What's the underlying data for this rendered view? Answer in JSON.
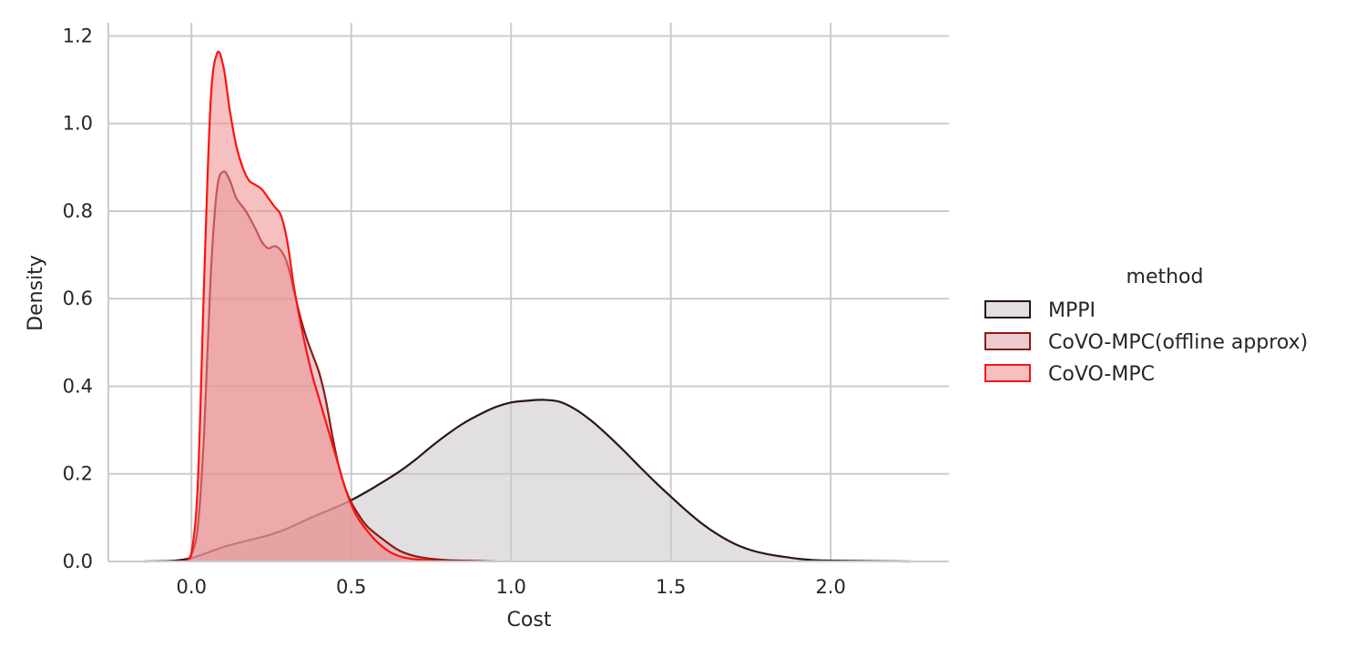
{
  "chart_data": {
    "type": "area",
    "xlabel": "Cost",
    "ylabel": "Density",
    "xlim": [
      -0.26,
      2.37
    ],
    "ylim": [
      0,
      1.23
    ],
    "xticks": [
      0.0,
      0.5,
      1.0,
      1.5,
      2.0
    ],
    "xtick_labels": [
      "0.0",
      "0.5",
      "1.0",
      "1.5",
      "2.0"
    ],
    "yticks": [
      0.0,
      0.2,
      0.4,
      0.6,
      0.8,
      1.0,
      1.2
    ],
    "ytick_labels": [
      "0.0",
      "0.2",
      "0.4",
      "0.6",
      "0.8",
      "1.0",
      "1.2"
    ],
    "grid": true,
    "legend": {
      "title": "method",
      "placement": "right"
    },
    "series": [
      {
        "name": "MPPI",
        "line_color": "#2a1616",
        "fill_color": "#c9c5c5",
        "x": [
          -0.15,
          -0.05,
          0.0,
          0.05,
          0.1,
          0.15,
          0.2,
          0.25,
          0.3,
          0.35,
          0.4,
          0.45,
          0.5,
          0.55,
          0.6,
          0.65,
          0.7,
          0.75,
          0.8,
          0.85,
          0.9,
          0.95,
          1.0,
          1.05,
          1.1,
          1.15,
          1.2,
          1.25,
          1.3,
          1.35,
          1.4,
          1.45,
          1.5,
          1.55,
          1.6,
          1.65,
          1.7,
          1.75,
          1.8,
          1.85,
          1.9,
          1.95,
          2.0,
          2.1,
          2.25
        ],
        "y": [
          0.0,
          0.002,
          0.008,
          0.02,
          0.033,
          0.043,
          0.052,
          0.062,
          0.075,
          0.092,
          0.108,
          0.123,
          0.14,
          0.16,
          0.182,
          0.205,
          0.232,
          0.262,
          0.29,
          0.315,
          0.335,
          0.352,
          0.363,
          0.367,
          0.369,
          0.365,
          0.348,
          0.322,
          0.29,
          0.255,
          0.218,
          0.182,
          0.148,
          0.115,
          0.085,
          0.06,
          0.04,
          0.026,
          0.017,
          0.011,
          0.006,
          0.003,
          0.002,
          0.001,
          0.0
        ]
      },
      {
        "name": "CoVO-MPC(offline approx)",
        "line_color": "#8b1a1a",
        "fill_color": "#d9a3a5",
        "x": [
          -0.03,
          -0.01,
          0.0,
          0.02,
          0.04,
          0.06,
          0.08,
          0.1,
          0.12,
          0.14,
          0.17,
          0.2,
          0.22,
          0.24,
          0.26,
          0.28,
          0.3,
          0.32,
          0.34,
          0.36,
          0.38,
          0.4,
          0.42,
          0.44,
          0.46,
          0.48,
          0.5,
          0.52,
          0.55,
          0.6,
          0.65,
          0.7,
          0.75,
          0.8,
          0.85,
          0.9,
          0.95
        ],
        "y": [
          0.0,
          0.005,
          0.015,
          0.08,
          0.3,
          0.65,
          0.85,
          0.89,
          0.87,
          0.83,
          0.8,
          0.76,
          0.73,
          0.715,
          0.72,
          0.71,
          0.68,
          0.62,
          0.56,
          0.51,
          0.47,
          0.43,
          0.37,
          0.29,
          0.22,
          0.17,
          0.135,
          0.11,
          0.08,
          0.05,
          0.025,
          0.012,
          0.006,
          0.003,
          0.002,
          0.001,
          0.0
        ]
      },
      {
        "name": "CoVO-MPC",
        "line_color": "#ff1111",
        "fill_color": "#f08c8c",
        "x": [
          -0.02,
          0.0,
          0.02,
          0.04,
          0.06,
          0.08,
          0.1,
          0.12,
          0.14,
          0.16,
          0.18,
          0.2,
          0.22,
          0.24,
          0.26,
          0.28,
          0.3,
          0.32,
          0.34,
          0.36,
          0.38,
          0.4,
          0.42,
          0.44,
          0.46,
          0.48,
          0.5,
          0.52,
          0.55,
          0.58,
          0.62,
          0.66,
          0.7,
          0.75,
          0.8
        ],
        "y": [
          0.0,
          0.02,
          0.18,
          0.65,
          1.05,
          1.16,
          1.13,
          1.03,
          0.95,
          0.9,
          0.87,
          0.86,
          0.85,
          0.83,
          0.81,
          0.79,
          0.73,
          0.63,
          0.55,
          0.48,
          0.42,
          0.37,
          0.32,
          0.27,
          0.22,
          0.17,
          0.13,
          0.1,
          0.07,
          0.045,
          0.022,
          0.01,
          0.005,
          0.002,
          0.0
        ]
      }
    ]
  }
}
